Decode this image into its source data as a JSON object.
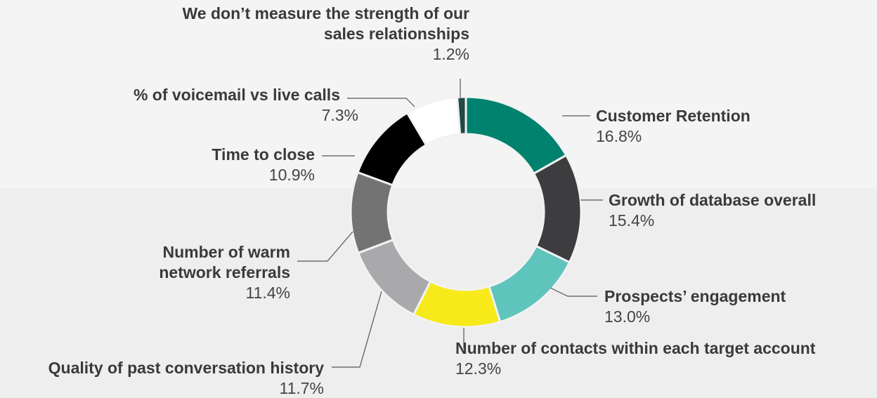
{
  "chart_data": {
    "type": "donut",
    "categories": [
      "Customer Retention",
      "Growth of database overall",
      "Prospects’ engagement",
      "Number of contacts within each target account",
      "Quality of past conversation history",
      "Number of warm network referrals",
      "Time to close",
      "% of voicemail vs live calls",
      "We don’t measure the strength of our sales relationships"
    ],
    "values": [
      16.8,
      15.4,
      13.0,
      12.3,
      11.7,
      11.4,
      10.9,
      7.3,
      1.2
    ],
    "value_labels": [
      "16.8%",
      "15.4%",
      "13.0%",
      "12.3%",
      "11.7%",
      "11.4%",
      "10.9%",
      "7.3%",
      "1.2%"
    ],
    "colors": [
      "#00826f",
      "#3d3d40",
      "#5fc4bc",
      "#f7ea1a",
      "#a9a9ac",
      "#737373",
      "#000000",
      "#ffffff",
      "#234845"
    ]
  }
}
